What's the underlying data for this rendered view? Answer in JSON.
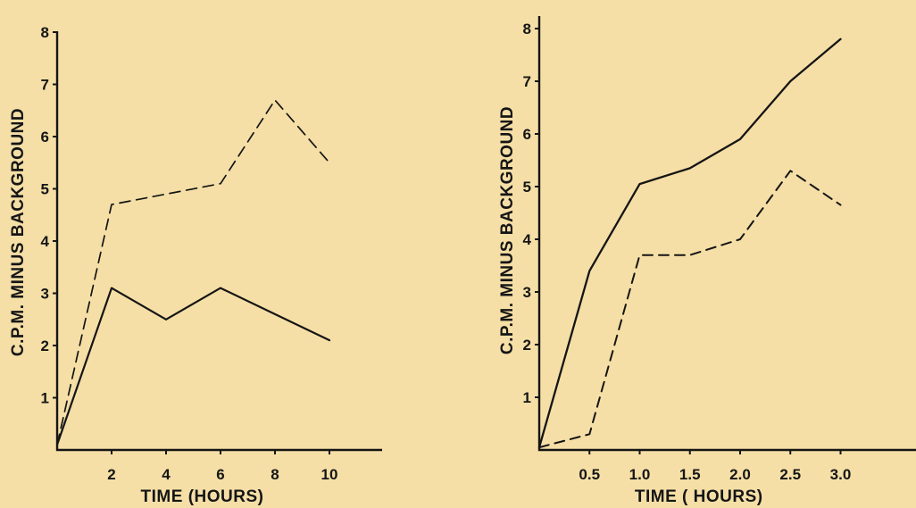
{
  "colors": {
    "background": "#f5dfa6",
    "ink": "#151515"
  },
  "chart_data": [
    {
      "type": "line",
      "title": "",
      "xlabel": "TIME (HOURS)",
      "ylabel": "C.P.M. MINUS BACKGROUND",
      "xlim": [
        0,
        12
      ],
      "ylim": [
        0,
        8
      ],
      "xticks": [
        2,
        4,
        6,
        8,
        10
      ],
      "xtick_labels": [
        "2",
        "4",
        "6",
        "8",
        "10"
      ],
      "yticks": [
        1,
        2,
        3,
        4,
        5,
        6,
        7,
        8
      ],
      "ytick_labels": [
        "1",
        "2",
        "3",
        "4",
        "5",
        "6",
        "7",
        "8"
      ],
      "grid": false,
      "legend": "none",
      "series": [
        {
          "style": "dashed",
          "x": [
            0,
            2,
            6,
            8,
            10
          ],
          "y": [
            0.1,
            4.7,
            5.1,
            6.7,
            5.5
          ]
        },
        {
          "style": "solid",
          "x": [
            0,
            2,
            4,
            6,
            8,
            10
          ],
          "y": [
            0.1,
            3.1,
            2.5,
            3.1,
            2.6,
            2.1
          ]
        }
      ]
    },
    {
      "type": "line",
      "title": "",
      "xlabel": "TIME ( HOURS)",
      "ylabel": "C.P.M. MINUS BACKGROUND",
      "xlim": [
        0,
        3.5
      ],
      "ylim": [
        0,
        8
      ],
      "xticks": [
        0.5,
        1.0,
        1.5,
        2.0,
        2.5,
        3.0
      ],
      "xtick_labels": [
        "0.5",
        "1.0",
        "1.5",
        "2.0",
        "2.5",
        "3.0"
      ],
      "yticks": [
        1,
        2,
        3,
        4,
        5,
        6,
        7,
        8
      ],
      "ytick_labels": [
        "1",
        "2",
        "3",
        "4",
        "5",
        "6",
        "7",
        "8"
      ],
      "grid": false,
      "legend": "none",
      "series": [
        {
          "style": "solid",
          "x": [
            0,
            0.5,
            1.0,
            1.5,
            2.0,
            2.5,
            3.0
          ],
          "y": [
            0.05,
            3.4,
            5.05,
            5.35,
            5.9,
            7.0,
            7.8
          ]
        },
        {
          "style": "dashed",
          "x": [
            0,
            0.5,
            1.0,
            1.5,
            2.0,
            2.5,
            3.0
          ],
          "y": [
            0.05,
            0.3,
            3.7,
            3.7,
            4.0,
            5.3,
            4.65
          ]
        }
      ]
    }
  ]
}
